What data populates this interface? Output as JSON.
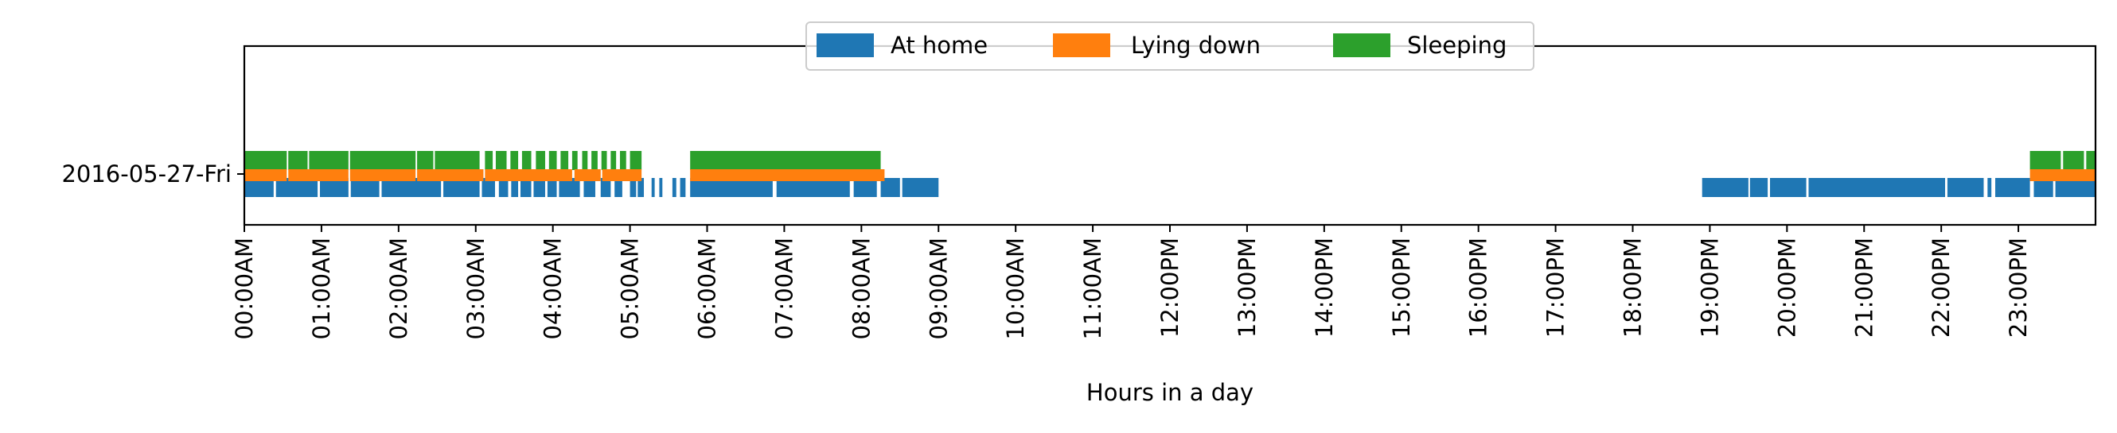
{
  "chart_data": {
    "type": "bar",
    "subtype": "broken-barh timeline",
    "title": "",
    "xlabel": "Hours in a day",
    "ylabel": "",
    "xlim": [
      0,
      24
    ],
    "x_unit": "hours",
    "grid": false,
    "legend_position": "top-center",
    "categories": [
      "2016-05-27-Fri"
    ],
    "x_ticks": [
      {
        "value": 0,
        "label": "00:00AM"
      },
      {
        "value": 1,
        "label": "01:00AM"
      },
      {
        "value": 2,
        "label": "02:00AM"
      },
      {
        "value": 3,
        "label": "03:00AM"
      },
      {
        "value": 4,
        "label": "04:00AM"
      },
      {
        "value": 5,
        "label": "05:00AM"
      },
      {
        "value": 6,
        "label": "06:00AM"
      },
      {
        "value": 7,
        "label": "07:00AM"
      },
      {
        "value": 8,
        "label": "08:00AM"
      },
      {
        "value": 9,
        "label": "09:00AM"
      },
      {
        "value": 10,
        "label": "10:00AM"
      },
      {
        "value": 11,
        "label": "11:00AM"
      },
      {
        "value": 12,
        "label": "12:00PM"
      },
      {
        "value": 13,
        "label": "13:00PM"
      },
      {
        "value": 14,
        "label": "14:00PM"
      },
      {
        "value": 15,
        "label": "15:00PM"
      },
      {
        "value": 16,
        "label": "16:00PM"
      },
      {
        "value": 17,
        "label": "17:00PM"
      },
      {
        "value": 18,
        "label": "18:00PM"
      },
      {
        "value": 19,
        "label": "19:00PM"
      },
      {
        "value": 20,
        "label": "20:00PM"
      },
      {
        "value": 21,
        "label": "21:00PM"
      },
      {
        "value": 22,
        "label": "22:00PM"
      },
      {
        "value": 23,
        "label": "23:00PM"
      }
    ],
    "series": [
      {
        "name": "At home",
        "color": "#1f77b4",
        "intervals": [
          [
            0.0,
            0.38
          ],
          [
            0.41,
            0.95
          ],
          [
            0.98,
            1.35
          ],
          [
            1.38,
            1.75
          ],
          [
            1.78,
            2.55
          ],
          [
            2.58,
            3.05
          ],
          [
            3.08,
            3.25
          ],
          [
            3.3,
            3.42
          ],
          [
            3.46,
            3.55
          ],
          [
            3.58,
            3.72
          ],
          [
            3.75,
            3.9
          ],
          [
            3.93,
            4.05
          ],
          [
            4.08,
            4.35
          ],
          [
            4.4,
            4.55
          ],
          [
            4.62,
            4.75
          ],
          [
            4.8,
            4.9
          ],
          [
            5.0,
            5.08
          ],
          [
            5.1,
            5.18
          ],
          [
            5.28,
            5.32
          ],
          [
            5.38,
            5.42
          ],
          [
            5.55,
            5.6
          ],
          [
            5.65,
            5.72
          ],
          [
            5.78,
            6.85
          ],
          [
            6.9,
            7.85
          ],
          [
            7.9,
            8.2
          ],
          [
            8.25,
            8.5
          ],
          [
            8.53,
            9.0
          ],
          [
            18.9,
            19.5
          ],
          [
            19.52,
            19.75
          ],
          [
            19.78,
            20.25
          ],
          [
            20.28,
            22.05
          ],
          [
            22.08,
            22.55
          ],
          [
            22.6,
            22.65
          ],
          [
            22.7,
            23.15
          ],
          [
            23.2,
            23.45
          ],
          [
            23.48,
            24.0
          ]
        ]
      },
      {
        "name": "Lying down",
        "color": "#ff7f0e",
        "intervals": [
          [
            0.0,
            0.55
          ],
          [
            0.57,
            1.35
          ],
          [
            1.37,
            2.22
          ],
          [
            2.24,
            3.1
          ],
          [
            3.12,
            4.25
          ],
          [
            4.28,
            4.62
          ],
          [
            4.64,
            5.15
          ],
          [
            5.78,
            8.3
          ],
          [
            23.15,
            24.0
          ]
        ]
      },
      {
        "name": "Sleeping",
        "color": "#2ca02c",
        "intervals": [
          [
            0.0,
            0.55
          ],
          [
            0.57,
            0.82
          ],
          [
            0.84,
            1.35
          ],
          [
            1.37,
            2.22
          ],
          [
            2.24,
            2.45
          ],
          [
            2.47,
            3.05
          ],
          [
            3.12,
            3.22
          ],
          [
            3.26,
            3.4
          ],
          [
            3.45,
            3.55
          ],
          [
            3.6,
            3.72
          ],
          [
            3.78,
            3.9
          ],
          [
            3.95,
            4.05
          ],
          [
            4.1,
            4.2
          ],
          [
            4.25,
            4.32
          ],
          [
            4.38,
            4.45
          ],
          [
            4.5,
            4.58
          ],
          [
            4.63,
            4.7
          ],
          [
            4.75,
            4.82
          ],
          [
            4.87,
            4.95
          ],
          [
            5.0,
            5.15
          ],
          [
            5.78,
            8.25
          ],
          [
            23.15,
            23.55
          ],
          [
            23.58,
            23.85
          ],
          [
            23.88,
            24.0
          ]
        ]
      }
    ]
  }
}
